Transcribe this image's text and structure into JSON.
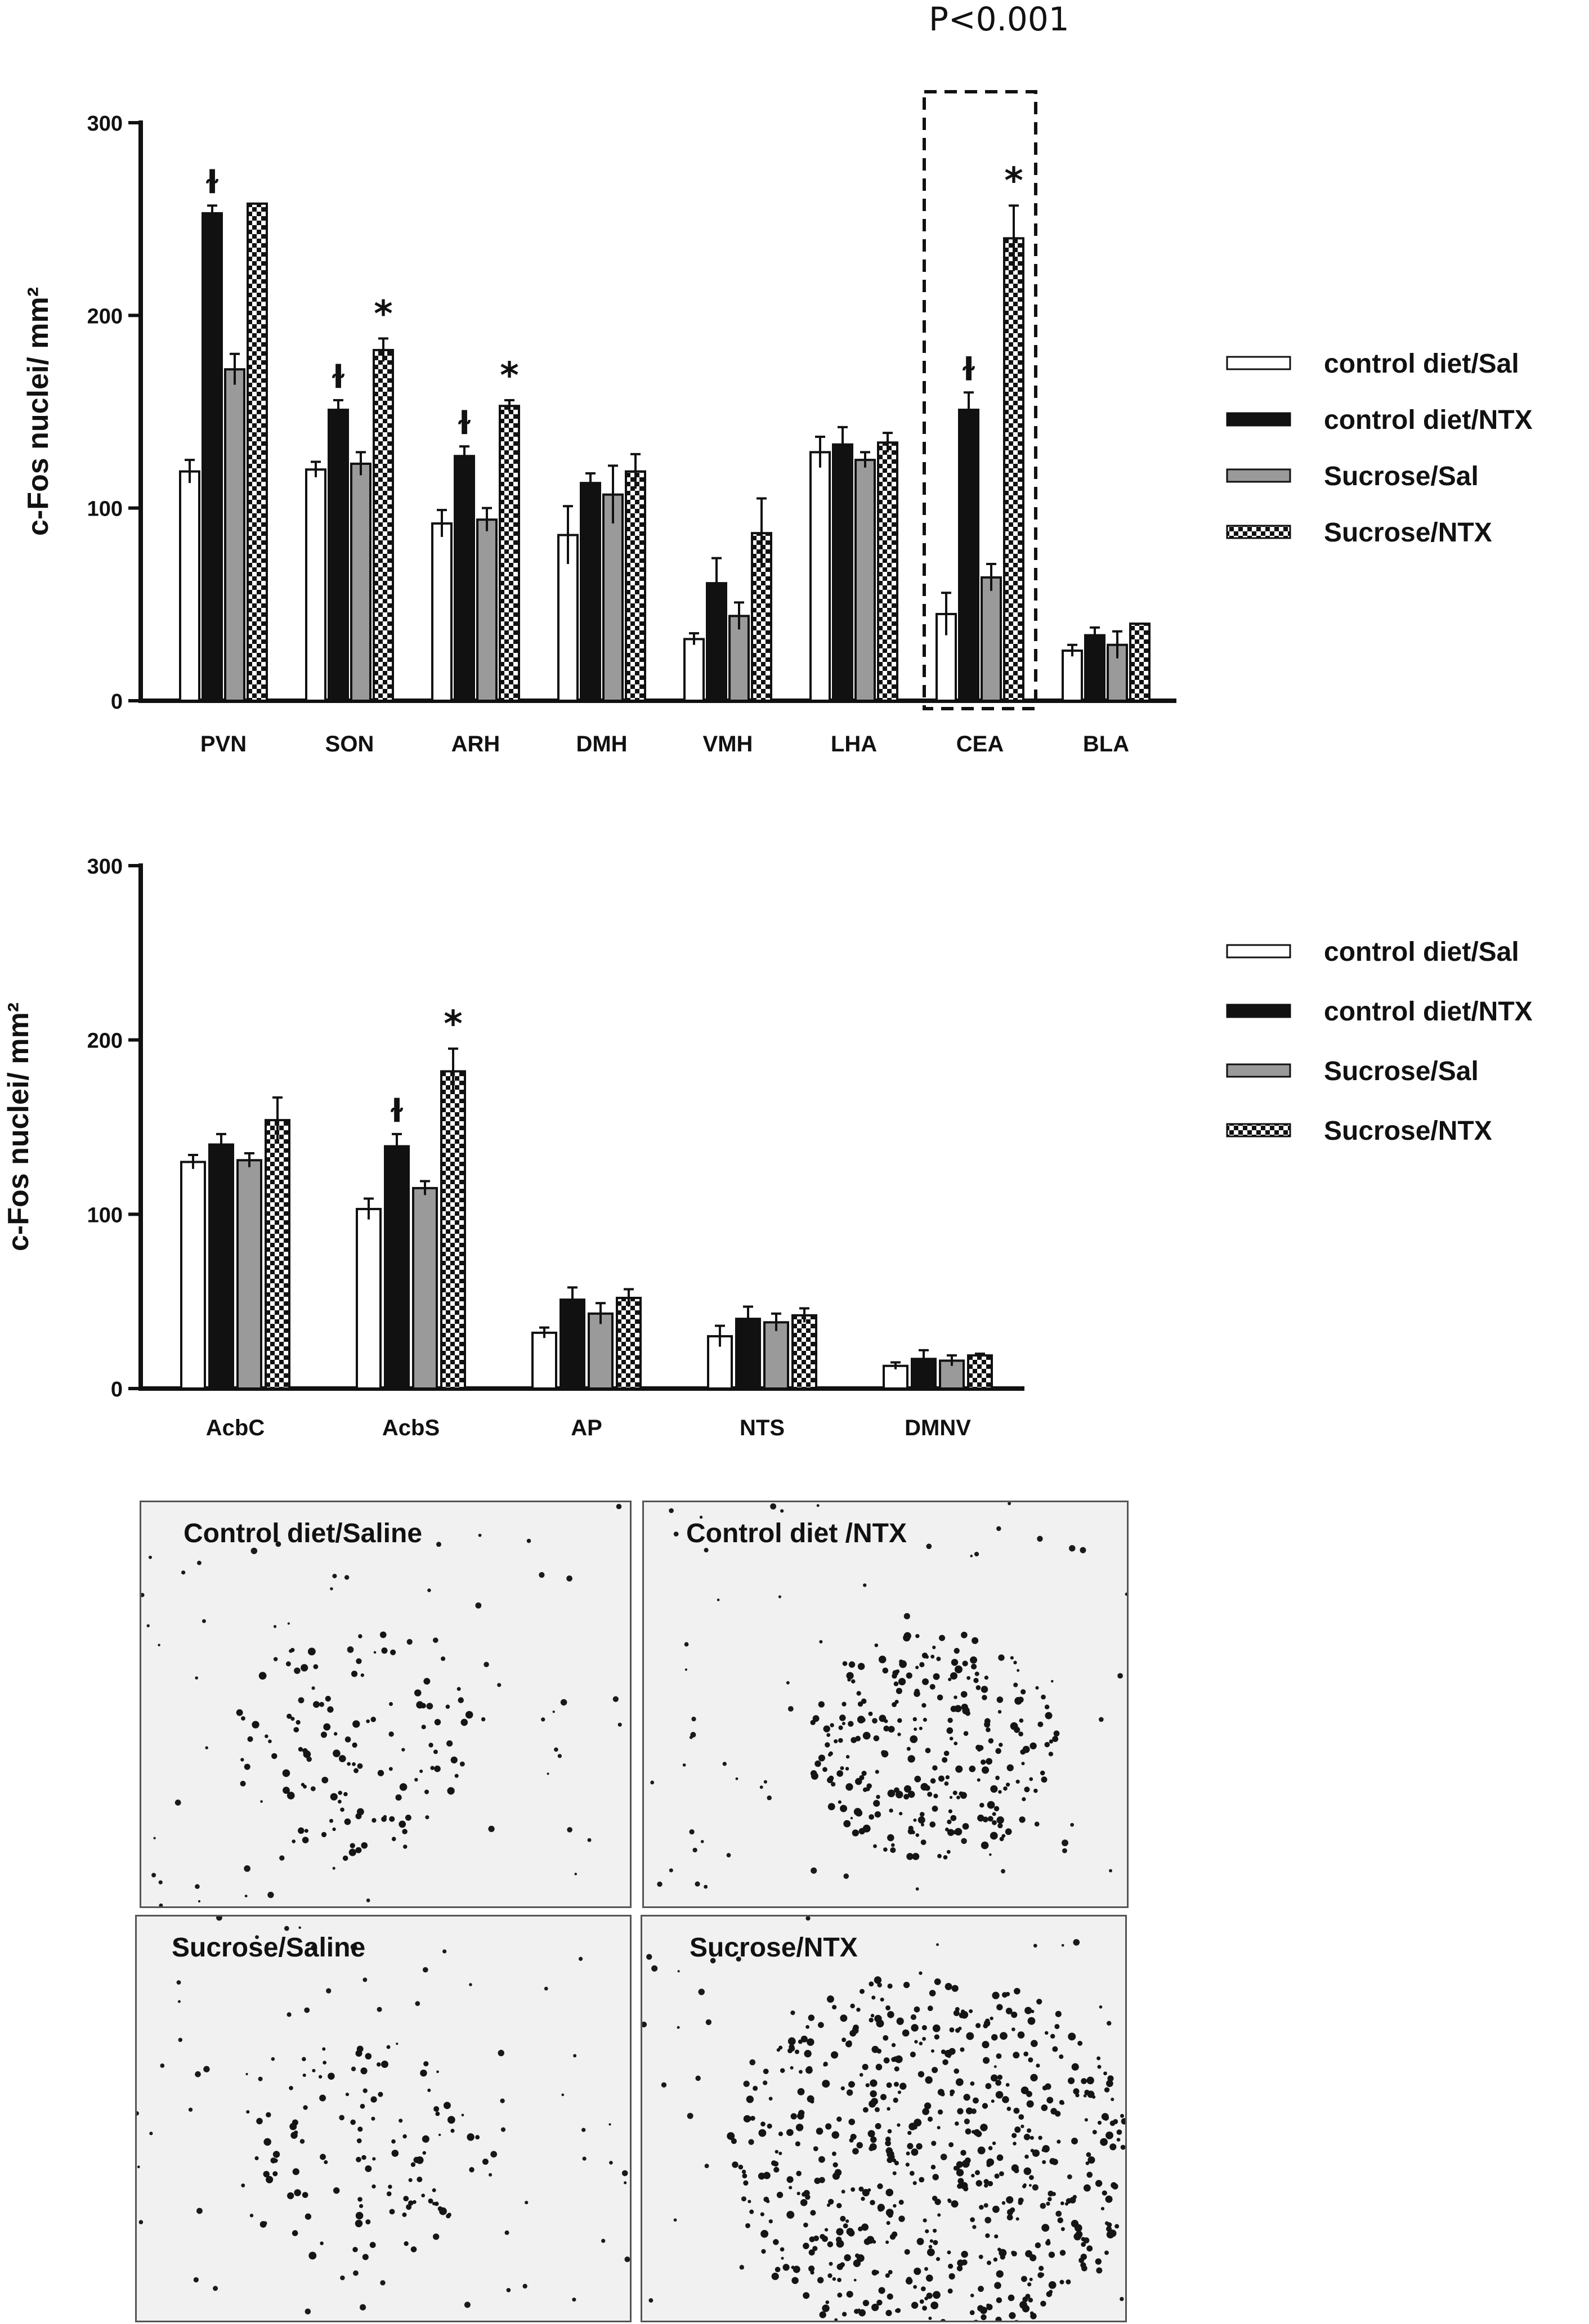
{
  "significance_label": "P<0.001",
  "colors": {
    "ink": "#111111",
    "gray_bar": "#9a9a9a",
    "white_bar": "#ffffff"
  },
  "chart_data": [
    {
      "type": "bar",
      "ylabel": "c-Fos nuclei/ mm²",
      "ylim": [
        0,
        300
      ],
      "yticks": [
        0,
        100,
        200,
        300
      ],
      "categories": [
        "PVN",
        "SON",
        "ARH",
        "DMH",
        "VMH",
        "LHA",
        "CEA",
        "BLA"
      ],
      "legend": [
        "control diet/Sal",
        "control diet/NTX",
        "Sucrose/Sal",
        "Sucrose/NTX"
      ],
      "series": [
        {
          "name": "control diet/Sal",
          "fill": "white",
          "values": [
            119,
            120,
            92,
            86,
            32,
            129,
            45,
            26
          ],
          "errors": [
            6,
            4,
            7,
            15,
            3,
            8,
            11,
            3
          ]
        },
        {
          "name": "control diet/NTX",
          "fill": "black",
          "values": [
            253,
            151,
            127,
            113,
            61,
            133,
            151,
            34
          ],
          "errors": [
            4,
            5,
            5,
            5,
            13,
            9,
            9,
            4
          ]
        },
        {
          "name": "Sucrose/Sal",
          "fill": "gray",
          "values": [
            172,
            123,
            94,
            107,
            44,
            125,
            64,
            29
          ],
          "errors": [
            8,
            6,
            6,
            15,
            7,
            4,
            7,
            7
          ]
        },
        {
          "name": "Sucrose/NTX",
          "fill": "checker",
          "values": [
            258,
            182,
            153,
            119,
            87,
            134,
            240,
            40
          ],
          "errors": [
            0,
            6,
            3,
            9,
            18,
            5,
            17,
            0
          ]
        }
      ],
      "annotations": [
        {
          "category": "PVN",
          "series": 1,
          "symbol": "ɫ"
        },
        {
          "category": "SON",
          "series": 1,
          "symbol": "ɫ"
        },
        {
          "category": "SON",
          "series": 3,
          "symbol": "*"
        },
        {
          "category": "ARH",
          "series": 1,
          "symbol": "ɫ"
        },
        {
          "category": "ARH",
          "series": 3,
          "symbol": "*"
        },
        {
          "category": "CEA",
          "series": 1,
          "symbol": "ɫ"
        },
        {
          "category": "CEA",
          "series": 3,
          "symbol": "*"
        }
      ],
      "highlight_category": "CEA"
    },
    {
      "type": "bar",
      "ylabel": "c-Fos nuclei/ mm²",
      "ylim": [
        0,
        300
      ],
      "yticks": [
        0,
        100,
        200,
        300
      ],
      "categories": [
        "AcbC",
        "AcbS",
        "AP",
        "NTS",
        "DMNV"
      ],
      "legend": [
        "control diet/Sal",
        "control diet/NTX",
        "Sucrose/Sal",
        "Sucrose/NTX"
      ],
      "series": [
        {
          "name": "control diet/Sal",
          "fill": "white",
          "values": [
            130,
            103,
            32,
            30,
            13
          ],
          "errors": [
            4,
            6,
            3,
            6,
            2
          ]
        },
        {
          "name": "control diet/NTX",
          "fill": "black",
          "values": [
            140,
            139,
            51,
            40,
            17
          ],
          "errors": [
            6,
            7,
            7,
            7,
            5
          ]
        },
        {
          "name": "Sucrose/Sal",
          "fill": "gray",
          "values": [
            131,
            115,
            43,
            38,
            16
          ],
          "errors": [
            4,
            4,
            6,
            5,
            3
          ]
        },
        {
          "name": "Sucrose/NTX",
          "fill": "checker",
          "values": [
            154,
            182,
            52,
            42,
            19
          ],
          "errors": [
            13,
            13,
            5,
            4,
            1
          ]
        }
      ],
      "annotations": [
        {
          "category": "AcbS",
          "series": 1,
          "symbol": "ɫ"
        },
        {
          "category": "AcbS",
          "series": 3,
          "symbol": "*"
        }
      ]
    }
  ],
  "micrographs": [
    {
      "label": "Control diet/Saline",
      "density": "low"
    },
    {
      "label": "Control diet /NTX",
      "density": "medium"
    },
    {
      "label": "Sucrose/Saline",
      "density": "low"
    },
    {
      "label": "Sucrose/NTX",
      "density": "high"
    }
  ]
}
